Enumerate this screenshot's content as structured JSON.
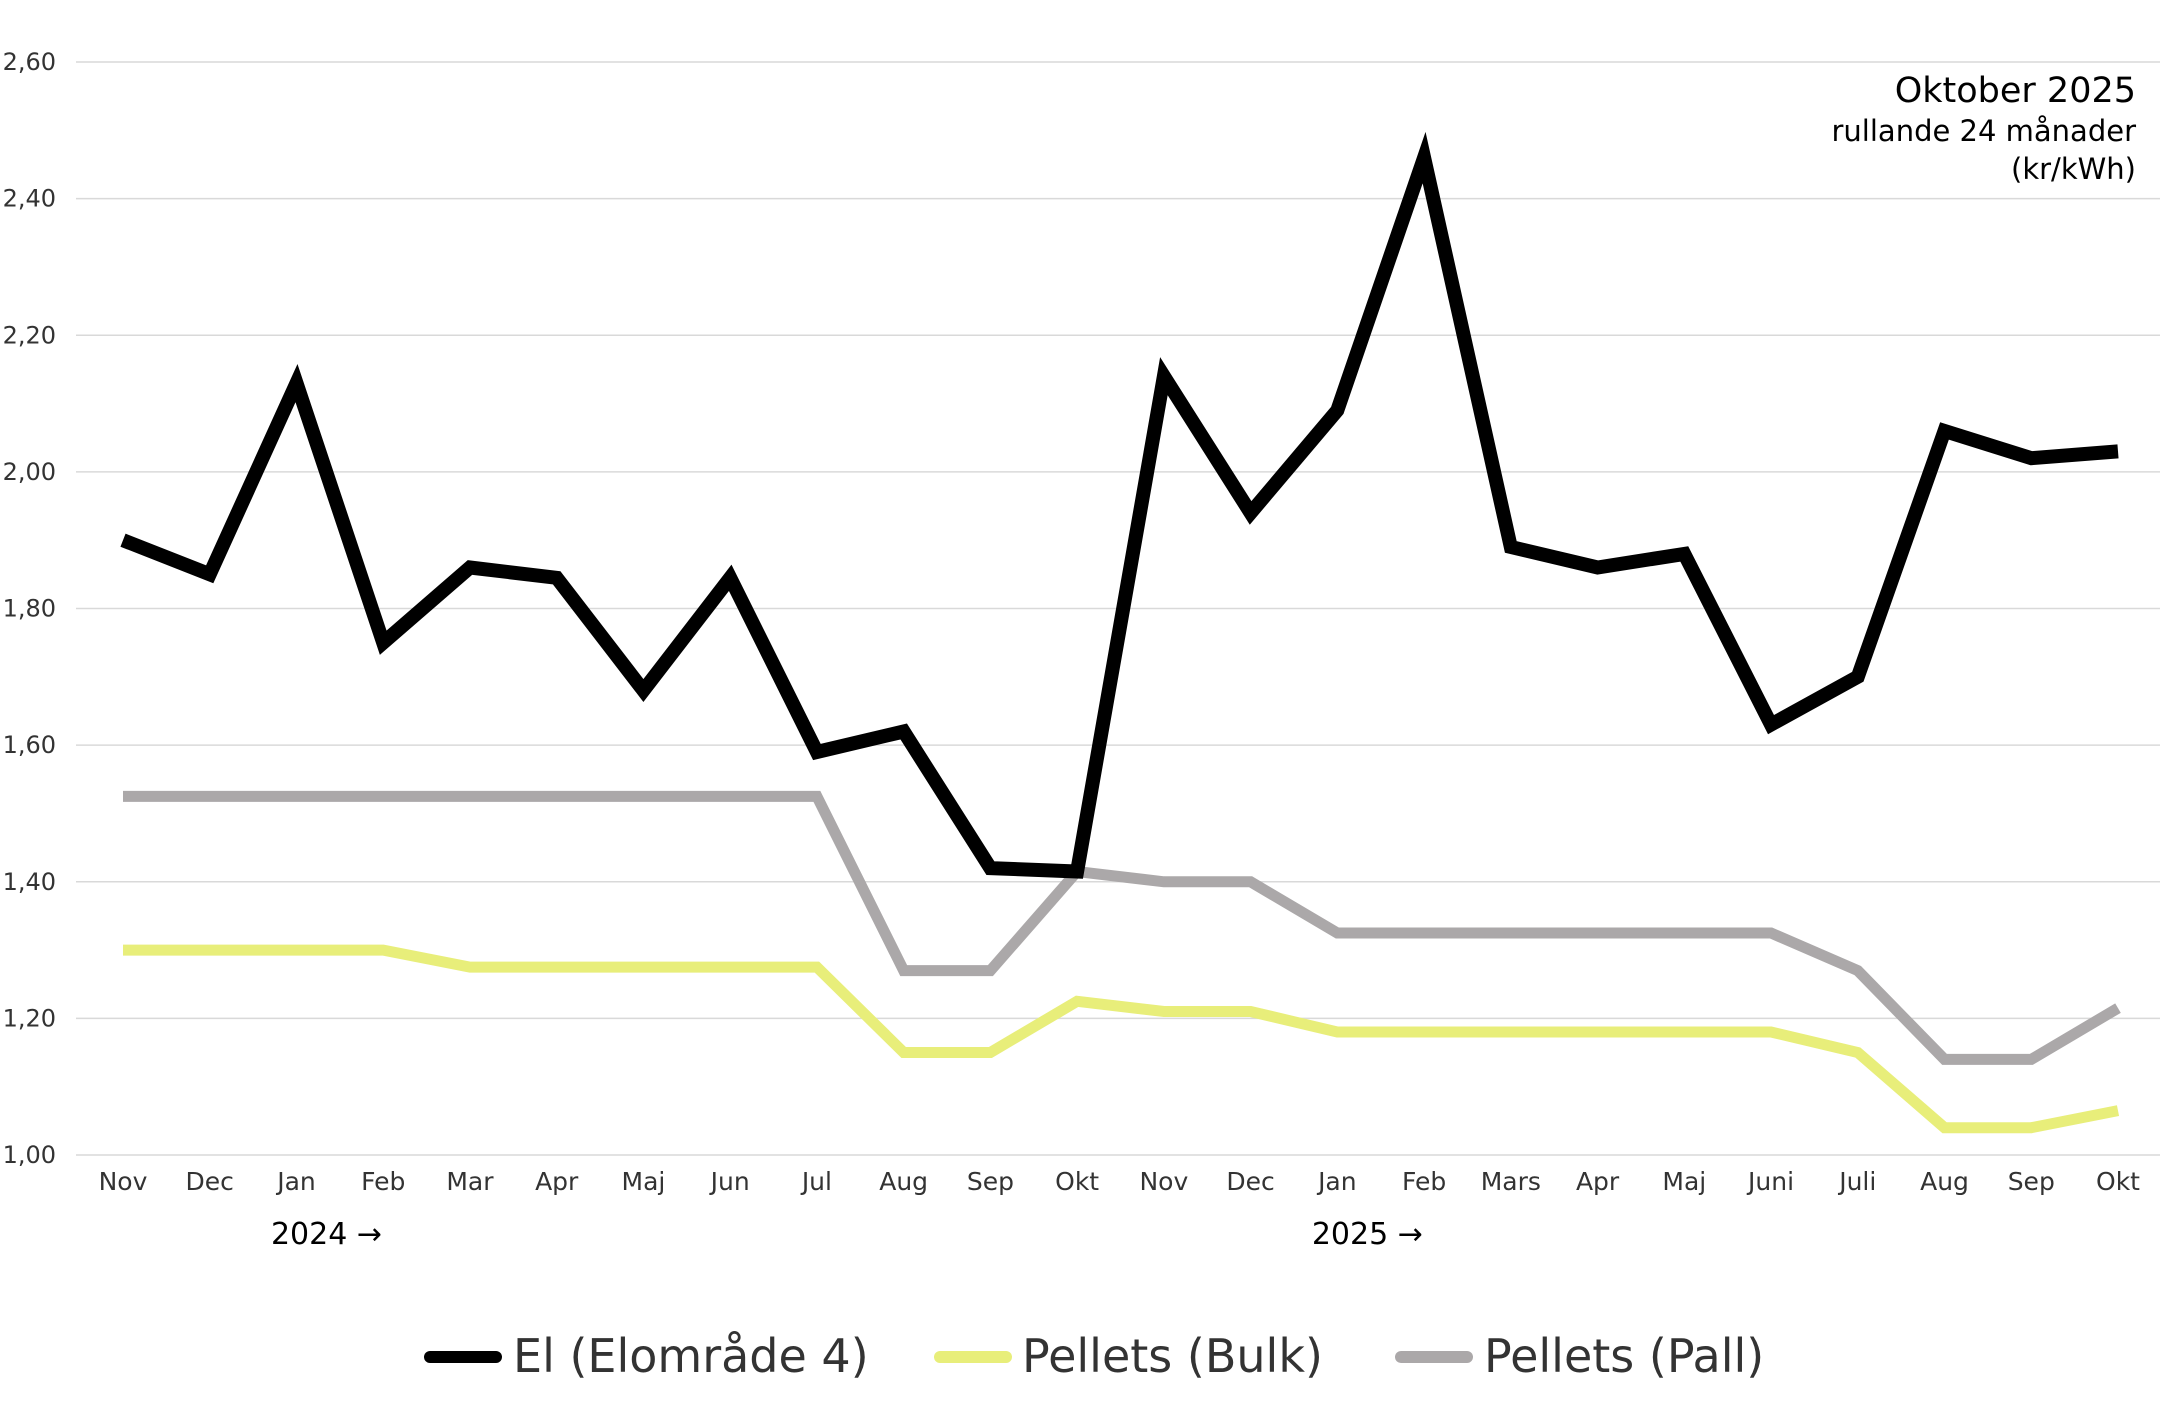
{
  "chart_data": {
    "type": "line",
    "title": "Oktober 2025",
    "subtitle": "rullande 24 månader",
    "unit": "(kr/kWh)",
    "ylim": [
      1.0,
      2.6
    ],
    "yticks": [
      "1,00",
      "1,20",
      "1,40",
      "1,60",
      "1,80",
      "2,00",
      "2,20",
      "2,40",
      "2,60"
    ],
    "ytick_values": [
      1.0,
      1.2,
      1.4,
      1.6,
      1.8,
      2.0,
      2.2,
      2.4,
      2.6
    ],
    "grid": true,
    "legend_placement": "bottom",
    "categories": [
      "Nov",
      "Dec",
      "Jan",
      "Feb",
      "Mar",
      "Apr",
      "Maj",
      "Jun",
      "Jul",
      "Aug",
      "Sep",
      "Okt",
      "Nov",
      "Dec",
      "Jan",
      "Feb",
      "Mars",
      "Apr",
      "Maj",
      "Juni",
      "Juli",
      "Aug",
      "Sep",
      "Okt"
    ],
    "year_labels": [
      {
        "label": "2024 →",
        "category_index": 2
      },
      {
        "label": "2025 →",
        "category_index": 14
      }
    ],
    "series": [
      {
        "name": "El (Elområde 4)",
        "color": "#000000",
        "values": [
          1.9,
          1.85,
          2.13,
          1.75,
          1.86,
          1.845,
          1.68,
          1.845,
          1.59,
          1.62,
          1.42,
          1.415,
          2.14,
          1.94,
          2.09,
          2.46,
          1.89,
          1.86,
          1.88,
          1.63,
          1.7,
          2.06,
          2.02,
          2.03
        ]
      },
      {
        "name": "Pellets (Bulk)",
        "color": "#e8ee7a",
        "values": [
          1.3,
          1.3,
          1.3,
          1.3,
          1.275,
          1.275,
          1.275,
          1.275,
          1.275,
          1.15,
          1.15,
          1.225,
          1.21,
          1.21,
          1.18,
          1.18,
          1.18,
          1.18,
          1.18,
          1.18,
          1.15,
          1.04,
          1.04,
          1.065
        ]
      },
      {
        "name": "Pellets (Pall)",
        "color": "#aba8a9",
        "values": [
          1.525,
          1.525,
          1.525,
          1.525,
          1.525,
          1.525,
          1.525,
          1.525,
          1.525,
          1.27,
          1.27,
          1.415,
          1.4,
          1.4,
          1.325,
          1.325,
          1.325,
          1.325,
          1.325,
          1.325,
          1.27,
          1.14,
          1.14,
          1.215
        ]
      }
    ]
  }
}
